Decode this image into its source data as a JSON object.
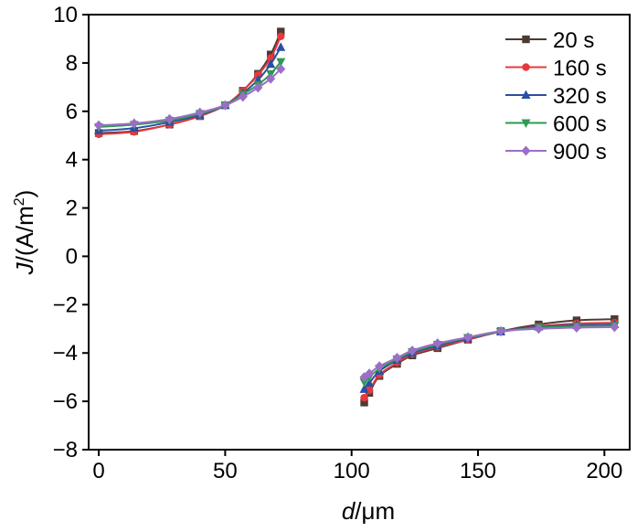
{
  "chart_data": {
    "type": "line",
    "title": "",
    "xlabel_italic": "d",
    "xlabel_rest": "/μm",
    "ylabel_italic": "J",
    "ylabel_rest": "/(A/m",
    "ylabel_sup": "2",
    "ylabel_close": ")",
    "xlim": [
      -4,
      210
    ],
    "ylim": [
      -8,
      10
    ],
    "xticks": [
      0,
      50,
      100,
      150,
      200
    ],
    "yticks": [
      -8,
      -6,
      -4,
      -2,
      0,
      2,
      4,
      6,
      8,
      10
    ],
    "xtick_labels": [
      "0",
      "50",
      "100",
      "150",
      "200"
    ],
    "ytick_labels": [
      "−8",
      "−6",
      "−4",
      "−2",
      "0",
      "2",
      "4",
      "6",
      "8",
      "10"
    ],
    "grid": false,
    "legend_position": "top-right",
    "series": [
      {
        "name": "20 s",
        "color": "#4d3b33",
        "marker": "square",
        "segments": [
          {
            "x": [
              0,
              14,
              28,
              40,
              50,
              57,
              63,
              68,
              72
            ],
            "y": [
              5.1,
              5.18,
              5.45,
              5.8,
              6.25,
              6.85,
              7.55,
              8.35,
              9.3
            ]
          },
          {
            "x": [
              105,
              107,
              111,
              118,
              124,
              134,
              146,
              159,
              174,
              189,
              204
            ],
            "y": [
              -6.05,
              -5.65,
              -4.95,
              -4.45,
              -4.1,
              -3.8,
              -3.45,
              -3.1,
              -2.82,
              -2.65,
              -2.6
            ]
          }
        ]
      },
      {
        "name": "160 s",
        "color": "#e8383b",
        "marker": "circle",
        "segments": [
          {
            "x": [
              0,
              14,
              28,
              40,
              50,
              57,
              63,
              68,
              72
            ],
            "y": [
              5.05,
              5.15,
              5.45,
              5.8,
              6.25,
              6.85,
              7.5,
              8.2,
              9.1
            ]
          },
          {
            "x": [
              105,
              107,
              111,
              118,
              124,
              134,
              146,
              159,
              174,
              189,
              204
            ],
            "y": [
              -5.85,
              -5.55,
              -4.9,
              -4.4,
              -4.05,
              -3.75,
              -3.45,
              -3.12,
              -2.9,
              -2.78,
              -2.75
            ]
          }
        ]
      },
      {
        "name": "320 s",
        "color": "#2b4fa2",
        "marker": "triangle-up",
        "segments": [
          {
            "x": [
              0,
              14,
              28,
              40,
              50,
              57,
              63,
              68,
              72
            ],
            "y": [
              5.2,
              5.3,
              5.55,
              5.85,
              6.25,
              6.75,
              7.3,
              7.95,
              8.65
            ]
          },
          {
            "x": [
              105,
              107,
              111,
              118,
              124,
              134,
              146,
              159,
              174,
              189,
              204
            ],
            "y": [
              -5.5,
              -5.25,
              -4.75,
              -4.3,
              -4.0,
              -3.7,
              -3.4,
              -3.12,
              -2.92,
              -2.85,
              -2.82
            ]
          }
        ]
      },
      {
        "name": "600 s",
        "color": "#2e9a52",
        "marker": "triangle-down",
        "segments": [
          {
            "x": [
              0,
              14,
              28,
              40,
              50,
              57,
              63,
              68,
              72
            ],
            "y": [
              5.35,
              5.45,
              5.62,
              5.9,
              6.25,
              6.7,
              7.1,
              7.55,
              8.05
            ]
          },
          {
            "x": [
              105,
              107,
              111,
              118,
              124,
              134,
              146,
              159,
              174,
              189,
              204
            ],
            "y": [
              -5.2,
              -5.0,
              -4.65,
              -4.25,
              -3.95,
              -3.65,
              -3.37,
              -3.12,
              -2.95,
              -2.9,
              -2.87
            ]
          }
        ]
      },
      {
        "name": "900 s",
        "color": "#9b6fc6",
        "marker": "diamond",
        "segments": [
          {
            "x": [
              0,
              14,
              28,
              40,
              50,
              57,
              63,
              68,
              72
            ],
            "y": [
              5.42,
              5.5,
              5.68,
              5.95,
              6.25,
              6.6,
              6.98,
              7.35,
              7.75
            ]
          },
          {
            "x": [
              105,
              107,
              111,
              118,
              124,
              134,
              146,
              159,
              174,
              189,
              204
            ],
            "y": [
              -5.0,
              -4.85,
              -4.55,
              -4.2,
              -3.9,
              -3.6,
              -3.35,
              -3.1,
              -3.0,
              -2.95,
              -2.93
            ]
          }
        ]
      }
    ]
  }
}
